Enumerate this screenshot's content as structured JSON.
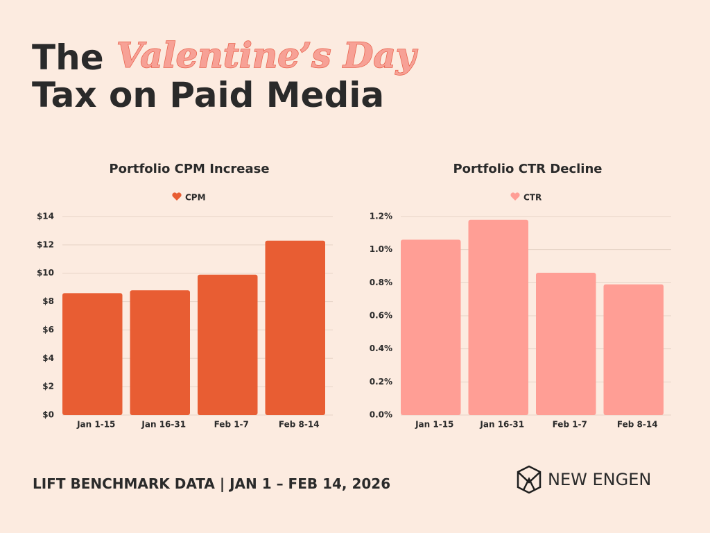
{
  "header": {
    "title_start": "The",
    "title_script": "Valentine’s Day",
    "title_line2": "Tax on Paid Media"
  },
  "chart_data": [
    {
      "type": "bar",
      "title": "Portfolio CPM Increase",
      "categories": [
        "Jan 1-15",
        "Jan 16-31",
        "Feb 1-7",
        "Feb 8-14"
      ],
      "series": [
        {
          "name": "CPM",
          "color": "#e85d33",
          "values": [
            8.6,
            8.8,
            9.9,
            12.3
          ]
        }
      ],
      "ylim": [
        0,
        14
      ],
      "yticks": [
        {
          "value": 0,
          "label": "$0"
        },
        {
          "value": 2,
          "label": "$2"
        },
        {
          "value": 4,
          "label": "$4"
        },
        {
          "value": 6,
          "label": "$6"
        },
        {
          "value": 8,
          "label": "$8"
        },
        {
          "value": 10,
          "label": "$10"
        },
        {
          "value": 12,
          "label": "$12"
        },
        {
          "value": 14,
          "label": "$14"
        }
      ],
      "grid": true
    },
    {
      "type": "bar",
      "title": "Portfolio CTR Decline",
      "categories": [
        "Jan 1-15",
        "Jan 16-31",
        "Feb 1-7",
        "Feb 8-14"
      ],
      "series": [
        {
          "name": "CTR",
          "color": "#ff9e95",
          "values": [
            1.06,
            1.18,
            0.86,
            0.79
          ]
        }
      ],
      "ylim": [
        0,
        1.2
      ],
      "yticks": [
        {
          "value": 0,
          "label": "0.0%"
        },
        {
          "value": 0.2,
          "label": "0.2%"
        },
        {
          "value": 0.4,
          "label": "0.4%"
        },
        {
          "value": 0.6,
          "label": "0.6%"
        },
        {
          "value": 0.8,
          "label": "0.8%"
        },
        {
          "value": 1.0,
          "label": "1.0%"
        },
        {
          "value": 1.2,
          "label": "1.2%"
        }
      ],
      "grid": true
    }
  ],
  "footer": {
    "source": "LIFT BENCHMARK DATA | JAN 1 – FEB 14, 2026",
    "brand": "NEW ENGEN"
  }
}
